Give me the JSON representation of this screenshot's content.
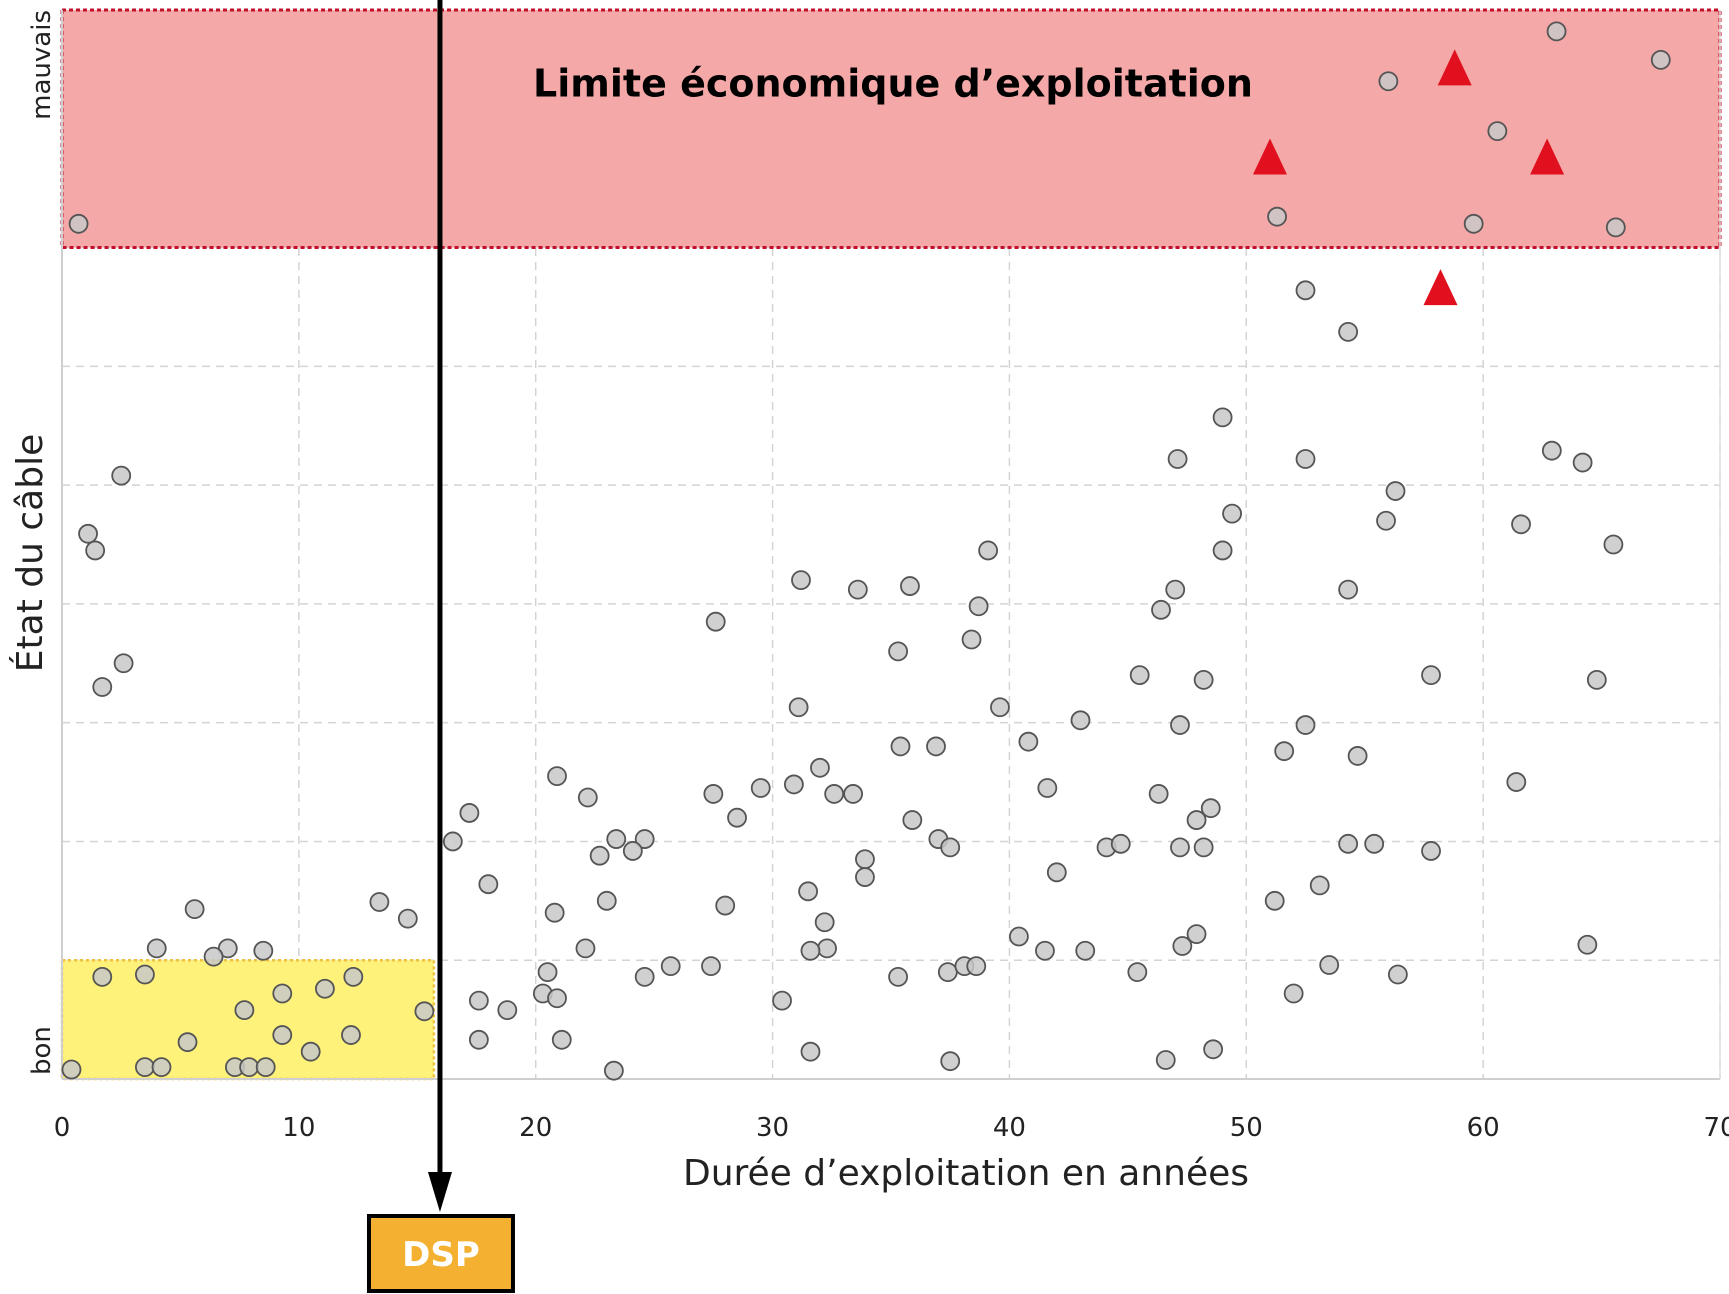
{
  "chart_data": {
    "type": "scatter",
    "xlabel": "Durée d’exploitation en années",
    "ylabel": "État du câble",
    "xlim": [
      0,
      70
    ],
    "x_ticks": [
      0,
      10,
      20,
      30,
      40,
      50,
      60,
      70
    ],
    "ylim": [
      0,
      9
    ],
    "y_category_labels": {
      "low": "bon",
      "high": "mauvais"
    },
    "grid": true,
    "colors": {
      "point_fill": "#c8c8c8",
      "point_stroke": "#555555",
      "red_band": "#f4a8a8",
      "red_band_border": "#c0102a",
      "yellow_band": "#fff27a",
      "yellow_band_border": "#f0c040",
      "triangle": "#e0101e",
      "dsp_box": "#f4b030"
    },
    "regions": [
      {
        "label": "Limite économique d’exploitation",
        "x": [
          0,
          70
        ],
        "y": [
          7,
          9
        ],
        "color": "red"
      },
      {
        "label": "",
        "x": [
          0,
          15.7
        ],
        "y": [
          0,
          1
        ],
        "color": "yellow"
      }
    ],
    "marker_line": {
      "x": 16,
      "label": "DSP"
    },
    "triangles": [
      {
        "x": 51,
        "y": 7.75
      },
      {
        "x": 58.8,
        "y": 8.5
      },
      {
        "x": 62.7,
        "y": 7.75
      },
      {
        "x": 58.2,
        "y": 6.65
      }
    ],
    "points": [
      [
        0.7,
        7.2
      ],
      [
        63.1,
        8.82
      ],
      [
        67.5,
        8.58
      ],
      [
        56,
        8.4
      ],
      [
        60.6,
        7.98
      ],
      [
        51.3,
        7.26
      ],
      [
        59.6,
        7.2
      ],
      [
        65.6,
        7.17
      ],
      [
        52.5,
        6.64
      ],
      [
        54.3,
        6.29
      ],
      [
        49,
        5.57
      ],
      [
        47.1,
        5.22
      ],
      [
        52.5,
        5.22
      ],
      [
        62.9,
        5.29
      ],
      [
        64.2,
        5.19
      ],
      [
        56.3,
        4.95
      ],
      [
        49.4,
        4.76
      ],
      [
        55.9,
        4.7
      ],
      [
        61.6,
        4.67
      ],
      [
        49,
        4.45
      ],
      [
        65.5,
        4.5
      ],
      [
        39.1,
        4.45
      ],
      [
        31.2,
        4.2
      ],
      [
        33.6,
        4.12
      ],
      [
        35.8,
        4.15
      ],
      [
        47,
        4.12
      ],
      [
        54.3,
        4.12
      ],
      [
        38.7,
        3.98
      ],
      [
        46.4,
        3.95
      ],
      [
        27.6,
        3.85
      ],
      [
        38.4,
        3.7
      ],
      [
        35.3,
        3.6
      ],
      [
        45.5,
        3.4
      ],
      [
        48.2,
        3.36
      ],
      [
        57.8,
        3.4
      ],
      [
        64.8,
        3.36
      ],
      [
        31.1,
        3.13
      ],
      [
        39.6,
        3.13
      ],
      [
        43,
        3.02
      ],
      [
        47.2,
        2.98
      ],
      [
        52.5,
        2.98
      ],
      [
        40.8,
        2.84
      ],
      [
        35.4,
        2.8
      ],
      [
        36.9,
        2.8
      ],
      [
        51.6,
        2.76
      ],
      [
        54.7,
        2.72
      ],
      [
        32,
        2.62
      ],
      [
        61.4,
        2.5
      ],
      [
        20.9,
        2.55
      ],
      [
        22.2,
        2.37
      ],
      [
        27.5,
        2.4
      ],
      [
        29.5,
        2.45
      ],
      [
        30.9,
        2.48
      ],
      [
        32.6,
        2.4
      ],
      [
        33.4,
        2.4
      ],
      [
        41.6,
        2.45
      ],
      [
        46.3,
        2.4
      ],
      [
        48.5,
        2.28
      ],
      [
        28.5,
        2.2
      ],
      [
        17.2,
        2.24
      ],
      [
        16.5,
        2
      ],
      [
        23.4,
        2.02
      ],
      [
        24.6,
        2.02
      ],
      [
        22.7,
        1.88
      ],
      [
        24.1,
        1.92
      ],
      [
        35.9,
        2.18
      ],
      [
        37,
        2.02
      ],
      [
        37.5,
        1.95
      ],
      [
        44.1,
        1.95
      ],
      [
        44.7,
        1.98
      ],
      [
        47.9,
        2.18
      ],
      [
        48.2,
        1.95
      ],
      [
        47.2,
        1.95
      ],
      [
        54.3,
        1.98
      ],
      [
        55.4,
        1.98
      ],
      [
        57.8,
        1.92
      ],
      [
        2.5,
        5.08
      ],
      [
        1.1,
        4.59
      ],
      [
        1.4,
        4.45
      ],
      [
        2.6,
        3.5
      ],
      [
        1.7,
        3.3
      ],
      [
        33.9,
        1.85
      ],
      [
        33.9,
        1.7
      ],
      [
        42,
        1.74
      ],
      [
        18,
        1.64
      ],
      [
        53.1,
        1.63
      ],
      [
        13.4,
        1.49
      ],
      [
        5.6,
        1.43
      ],
      [
        14.6,
        1.35
      ],
      [
        23,
        1.5
      ],
      [
        28,
        1.46
      ],
      [
        20.8,
        1.4
      ],
      [
        31.5,
        1.58
      ],
      [
        51.2,
        1.5
      ],
      [
        32.2,
        1.32
      ],
      [
        40.4,
        1.2
      ],
      [
        47.9,
        1.22
      ],
      [
        4,
        1.1
      ],
      [
        7,
        1.1
      ],
      [
        8.5,
        1.08
      ],
      [
        6.4,
        1.03
      ],
      [
        22.1,
        1.1
      ],
      [
        32.3,
        1.1
      ],
      [
        31.6,
        1.08
      ],
      [
        41.5,
        1.08
      ],
      [
        43.2,
        1.08
      ],
      [
        47.3,
        1.12
      ],
      [
        64.4,
        1.13
      ],
      [
        3.5,
        0.88
      ],
      [
        1.7,
        0.86
      ],
      [
        12.3,
        0.86
      ],
      [
        20.5,
        0.9
      ],
      [
        25.7,
        0.95
      ],
      [
        27.4,
        0.95
      ],
      [
        24.6,
        0.86
      ],
      [
        35.3,
        0.86
      ],
      [
        37.4,
        0.9
      ],
      [
        38.1,
        0.95
      ],
      [
        38.6,
        0.95
      ],
      [
        45.4,
        0.9
      ],
      [
        53.5,
        0.96
      ],
      [
        56.4,
        0.88
      ],
      [
        11.1,
        0.76
      ],
      [
        9.3,
        0.72
      ],
      [
        20.3,
        0.72
      ],
      [
        20.9,
        0.68
      ],
      [
        17.6,
        0.66
      ],
      [
        15.3,
        0.57
      ],
      [
        7.7,
        0.58
      ],
      [
        18.8,
        0.58
      ],
      [
        52,
        0.72
      ],
      [
        30.4,
        0.66
      ],
      [
        5.3,
        0.31
      ],
      [
        9.3,
        0.37
      ],
      [
        12.2,
        0.37
      ],
      [
        10.5,
        0.23
      ],
      [
        21.1,
        0.33
      ],
      [
        17.6,
        0.33
      ],
      [
        3.5,
        0.1
      ],
      [
        4.2,
        0.1
      ],
      [
        7.3,
        0.1
      ],
      [
        7.9,
        0.1
      ],
      [
        8.6,
        0.1
      ],
      [
        0.4,
        0.08
      ],
      [
        23.3,
        0.07
      ],
      [
        31.6,
        0.23
      ],
      [
        37.5,
        0.15
      ],
      [
        46.6,
        0.16
      ],
      [
        48.6,
        0.25
      ]
    ]
  }
}
